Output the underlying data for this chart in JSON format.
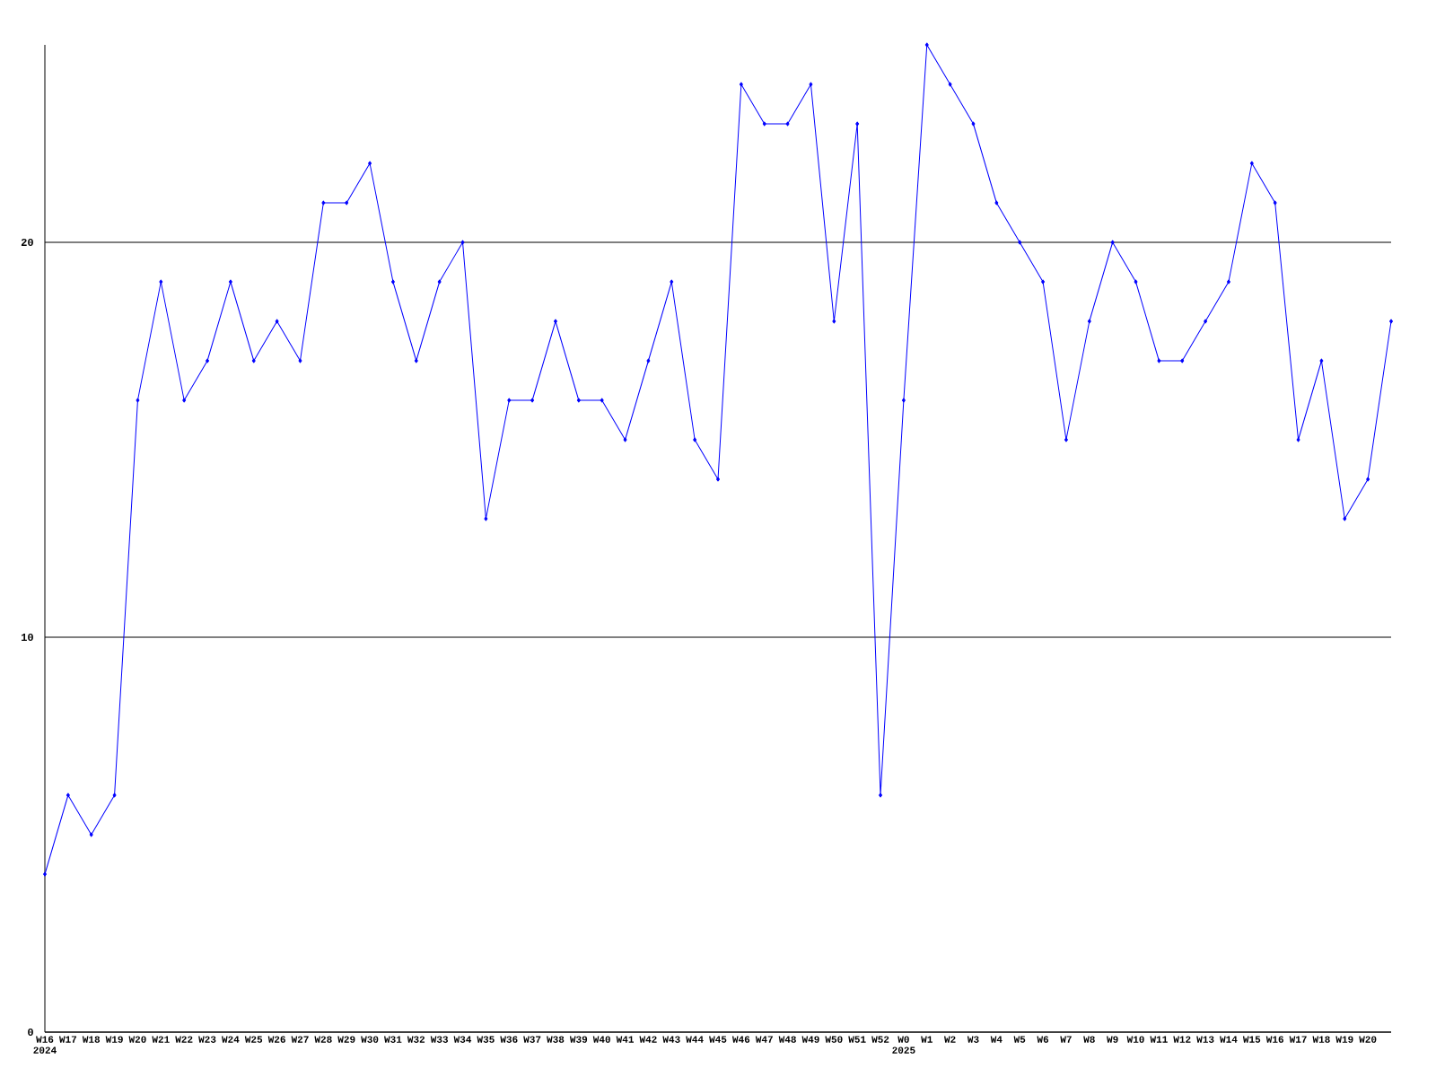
{
  "chart_data": {
    "type": "line",
    "categories": [
      "W16 2024",
      "W17",
      "W18",
      "W19",
      "W20",
      "W21",
      "W22",
      "W23",
      "W24",
      "W25",
      "W26",
      "W27",
      "W28",
      "W29",
      "W30",
      "W31",
      "W32",
      "W33",
      "W34",
      "W35",
      "W36",
      "W37",
      "W38",
      "W39",
      "W40",
      "W41",
      "W42",
      "W43",
      "W44",
      "W45",
      "W46",
      "W47",
      "W48",
      "W49",
      "W50",
      "W51",
      "W52",
      "W0 2025",
      "W1",
      "W2",
      "W3",
      "W4",
      "W5",
      "W6",
      "W7",
      "W8",
      "W9",
      "W10",
      "W11",
      "W12",
      "W13",
      "W14",
      "W15",
      "W16",
      "W17",
      "W18",
      "W19",
      "W20",
      null
    ],
    "series": [
      {
        "color": "#0000ff",
        "values": [
          4,
          6,
          5,
          6,
          16,
          19,
          16,
          17,
          19,
          17,
          18,
          17,
          21,
          21,
          22,
          19,
          17,
          19,
          20,
          13,
          16,
          16,
          18,
          16,
          16,
          15,
          17,
          19,
          15,
          14,
          24,
          23,
          23,
          24,
          18,
          23,
          6,
          16,
          25,
          24,
          23,
          21,
          20,
          19,
          15,
          18,
          20,
          19,
          17,
          17,
          18,
          19,
          22,
          21,
          15,
          17,
          13,
          14,
          18
        ]
      }
    ],
    "ylim": [
      0,
      25
    ],
    "yticks": [
      0,
      10,
      20
    ],
    "grid": "y",
    "marker": "diamond",
    "line_style": "solid"
  }
}
